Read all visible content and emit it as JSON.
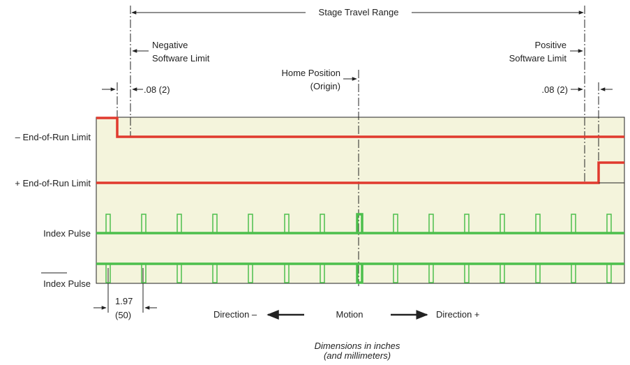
{
  "labels": {
    "stage_travel_range": "Stage Travel Range",
    "negative_limit_line1": "Negative",
    "negative_limit_line2": "Software Limit",
    "positive_limit_line1": "Positive",
    "positive_limit_line2": "Software Limit",
    "home_line1": "Home Position",
    "home_line2": "(Origin)",
    "neg_offset": ".08 (2)",
    "pos_offset": ".08 (2)",
    "neg_eor": "– End-of-Run Limit",
    "pos_eor": "+ End-of-Run Limit",
    "index_pulse": "Index Pulse",
    "index_pulse_bar": "Index Pulse",
    "pitch_in": "1.97",
    "pitch_mm": "(50)",
    "direction_neg": "Direction –",
    "motion": "Motion",
    "direction_pos": "Direction +",
    "dims_line1": "Dimensions in inches",
    "dims_line2": "(and millimeters)"
  },
  "colors": {
    "panel_fill": "#f4f4dc",
    "limit_signal": "#e03a2e",
    "index_signal": "#4cbf4c",
    "line": "#222222"
  }
}
